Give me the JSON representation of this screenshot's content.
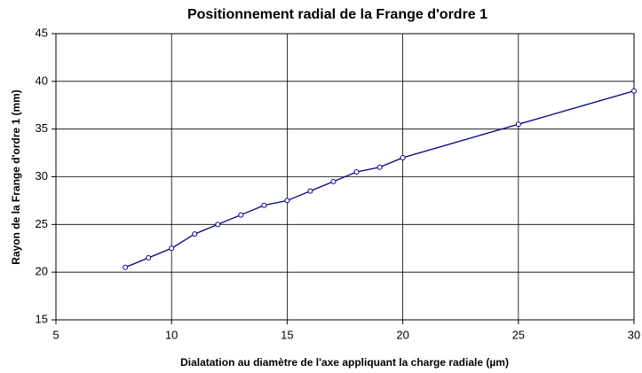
{
  "chart_data": {
    "type": "line",
    "title": "Positionnement radial de la Frange d'ordre 1",
    "x_label": "Dialatation au diamètre de l'axe appliquant la charge radiale (µm)",
    "y_label": "Rayon de la Frange d'ordre 1 (mm)",
    "x": [
      8,
      9,
      10,
      11,
      12,
      13,
      14,
      15,
      16,
      17,
      18,
      19,
      20,
      25,
      30
    ],
    "series": [
      {
        "name": "Rayon",
        "color": "#000080",
        "values": [
          20.5,
          21.5,
          22.5,
          24,
          25,
          26,
          27,
          27.5,
          28.5,
          29.5,
          30.5,
          31,
          32,
          35.5,
          39
        ]
      }
    ],
    "xlim": [
      5,
      30
    ],
    "xticks": [
      5,
      10,
      15,
      20,
      25,
      30
    ],
    "ylim": [
      15,
      45
    ],
    "yticks": [
      15,
      20,
      25,
      30,
      35,
      40,
      45
    ],
    "grid": true
  }
}
